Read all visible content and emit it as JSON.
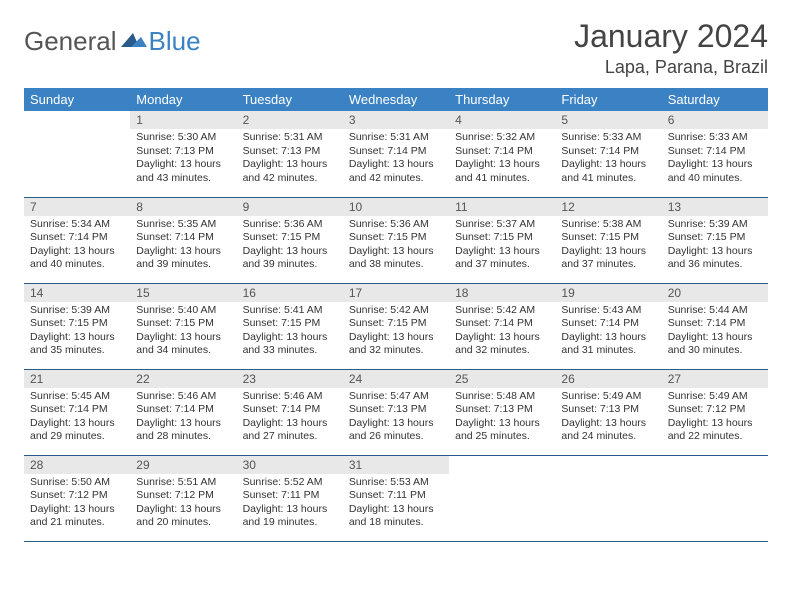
{
  "logo": {
    "part1": "General",
    "part2": "Blue"
  },
  "title": "January 2024",
  "location": "Lapa, Parana, Brazil",
  "colors": {
    "header_bg": "#3b82c4",
    "daynum_bg": "#e8e8e8",
    "border": "#2a5a8a",
    "text": "#333333"
  },
  "weekdays": [
    "Sunday",
    "Monday",
    "Tuesday",
    "Wednesday",
    "Thursday",
    "Friday",
    "Saturday"
  ],
  "weeks": [
    [
      {
        "day": "",
        "sunrise": "",
        "sunset": "",
        "daylight": ""
      },
      {
        "day": "1",
        "sunrise": "Sunrise: 5:30 AM",
        "sunset": "Sunset: 7:13 PM",
        "daylight": "Daylight: 13 hours and 43 minutes."
      },
      {
        "day": "2",
        "sunrise": "Sunrise: 5:31 AM",
        "sunset": "Sunset: 7:13 PM",
        "daylight": "Daylight: 13 hours and 42 minutes."
      },
      {
        "day": "3",
        "sunrise": "Sunrise: 5:31 AM",
        "sunset": "Sunset: 7:14 PM",
        "daylight": "Daylight: 13 hours and 42 minutes."
      },
      {
        "day": "4",
        "sunrise": "Sunrise: 5:32 AM",
        "sunset": "Sunset: 7:14 PM",
        "daylight": "Daylight: 13 hours and 41 minutes."
      },
      {
        "day": "5",
        "sunrise": "Sunrise: 5:33 AM",
        "sunset": "Sunset: 7:14 PM",
        "daylight": "Daylight: 13 hours and 41 minutes."
      },
      {
        "day": "6",
        "sunrise": "Sunrise: 5:33 AM",
        "sunset": "Sunset: 7:14 PM",
        "daylight": "Daylight: 13 hours and 40 minutes."
      }
    ],
    [
      {
        "day": "7",
        "sunrise": "Sunrise: 5:34 AM",
        "sunset": "Sunset: 7:14 PM",
        "daylight": "Daylight: 13 hours and 40 minutes."
      },
      {
        "day": "8",
        "sunrise": "Sunrise: 5:35 AM",
        "sunset": "Sunset: 7:14 PM",
        "daylight": "Daylight: 13 hours and 39 minutes."
      },
      {
        "day": "9",
        "sunrise": "Sunrise: 5:36 AM",
        "sunset": "Sunset: 7:15 PM",
        "daylight": "Daylight: 13 hours and 39 minutes."
      },
      {
        "day": "10",
        "sunrise": "Sunrise: 5:36 AM",
        "sunset": "Sunset: 7:15 PM",
        "daylight": "Daylight: 13 hours and 38 minutes."
      },
      {
        "day": "11",
        "sunrise": "Sunrise: 5:37 AM",
        "sunset": "Sunset: 7:15 PM",
        "daylight": "Daylight: 13 hours and 37 minutes."
      },
      {
        "day": "12",
        "sunrise": "Sunrise: 5:38 AM",
        "sunset": "Sunset: 7:15 PM",
        "daylight": "Daylight: 13 hours and 37 minutes."
      },
      {
        "day": "13",
        "sunrise": "Sunrise: 5:39 AM",
        "sunset": "Sunset: 7:15 PM",
        "daylight": "Daylight: 13 hours and 36 minutes."
      }
    ],
    [
      {
        "day": "14",
        "sunrise": "Sunrise: 5:39 AM",
        "sunset": "Sunset: 7:15 PM",
        "daylight": "Daylight: 13 hours and 35 minutes."
      },
      {
        "day": "15",
        "sunrise": "Sunrise: 5:40 AM",
        "sunset": "Sunset: 7:15 PM",
        "daylight": "Daylight: 13 hours and 34 minutes."
      },
      {
        "day": "16",
        "sunrise": "Sunrise: 5:41 AM",
        "sunset": "Sunset: 7:15 PM",
        "daylight": "Daylight: 13 hours and 33 minutes."
      },
      {
        "day": "17",
        "sunrise": "Sunrise: 5:42 AM",
        "sunset": "Sunset: 7:15 PM",
        "daylight": "Daylight: 13 hours and 32 minutes."
      },
      {
        "day": "18",
        "sunrise": "Sunrise: 5:42 AM",
        "sunset": "Sunset: 7:14 PM",
        "daylight": "Daylight: 13 hours and 32 minutes."
      },
      {
        "day": "19",
        "sunrise": "Sunrise: 5:43 AM",
        "sunset": "Sunset: 7:14 PM",
        "daylight": "Daylight: 13 hours and 31 minutes."
      },
      {
        "day": "20",
        "sunrise": "Sunrise: 5:44 AM",
        "sunset": "Sunset: 7:14 PM",
        "daylight": "Daylight: 13 hours and 30 minutes."
      }
    ],
    [
      {
        "day": "21",
        "sunrise": "Sunrise: 5:45 AM",
        "sunset": "Sunset: 7:14 PM",
        "daylight": "Daylight: 13 hours and 29 minutes."
      },
      {
        "day": "22",
        "sunrise": "Sunrise: 5:46 AM",
        "sunset": "Sunset: 7:14 PM",
        "daylight": "Daylight: 13 hours and 28 minutes."
      },
      {
        "day": "23",
        "sunrise": "Sunrise: 5:46 AM",
        "sunset": "Sunset: 7:14 PM",
        "daylight": "Daylight: 13 hours and 27 minutes."
      },
      {
        "day": "24",
        "sunrise": "Sunrise: 5:47 AM",
        "sunset": "Sunset: 7:13 PM",
        "daylight": "Daylight: 13 hours and 26 minutes."
      },
      {
        "day": "25",
        "sunrise": "Sunrise: 5:48 AM",
        "sunset": "Sunset: 7:13 PM",
        "daylight": "Daylight: 13 hours and 25 minutes."
      },
      {
        "day": "26",
        "sunrise": "Sunrise: 5:49 AM",
        "sunset": "Sunset: 7:13 PM",
        "daylight": "Daylight: 13 hours and 24 minutes."
      },
      {
        "day": "27",
        "sunrise": "Sunrise: 5:49 AM",
        "sunset": "Sunset: 7:12 PM",
        "daylight": "Daylight: 13 hours and 22 minutes."
      }
    ],
    [
      {
        "day": "28",
        "sunrise": "Sunrise: 5:50 AM",
        "sunset": "Sunset: 7:12 PM",
        "daylight": "Daylight: 13 hours and 21 minutes."
      },
      {
        "day": "29",
        "sunrise": "Sunrise: 5:51 AM",
        "sunset": "Sunset: 7:12 PM",
        "daylight": "Daylight: 13 hours and 20 minutes."
      },
      {
        "day": "30",
        "sunrise": "Sunrise: 5:52 AM",
        "sunset": "Sunset: 7:11 PM",
        "daylight": "Daylight: 13 hours and 19 minutes."
      },
      {
        "day": "31",
        "sunrise": "Sunrise: 5:53 AM",
        "sunset": "Sunset: 7:11 PM",
        "daylight": "Daylight: 13 hours and 18 minutes."
      },
      {
        "day": "",
        "sunrise": "",
        "sunset": "",
        "daylight": ""
      },
      {
        "day": "",
        "sunrise": "",
        "sunset": "",
        "daylight": ""
      },
      {
        "day": "",
        "sunrise": "",
        "sunset": "",
        "daylight": ""
      }
    ]
  ]
}
